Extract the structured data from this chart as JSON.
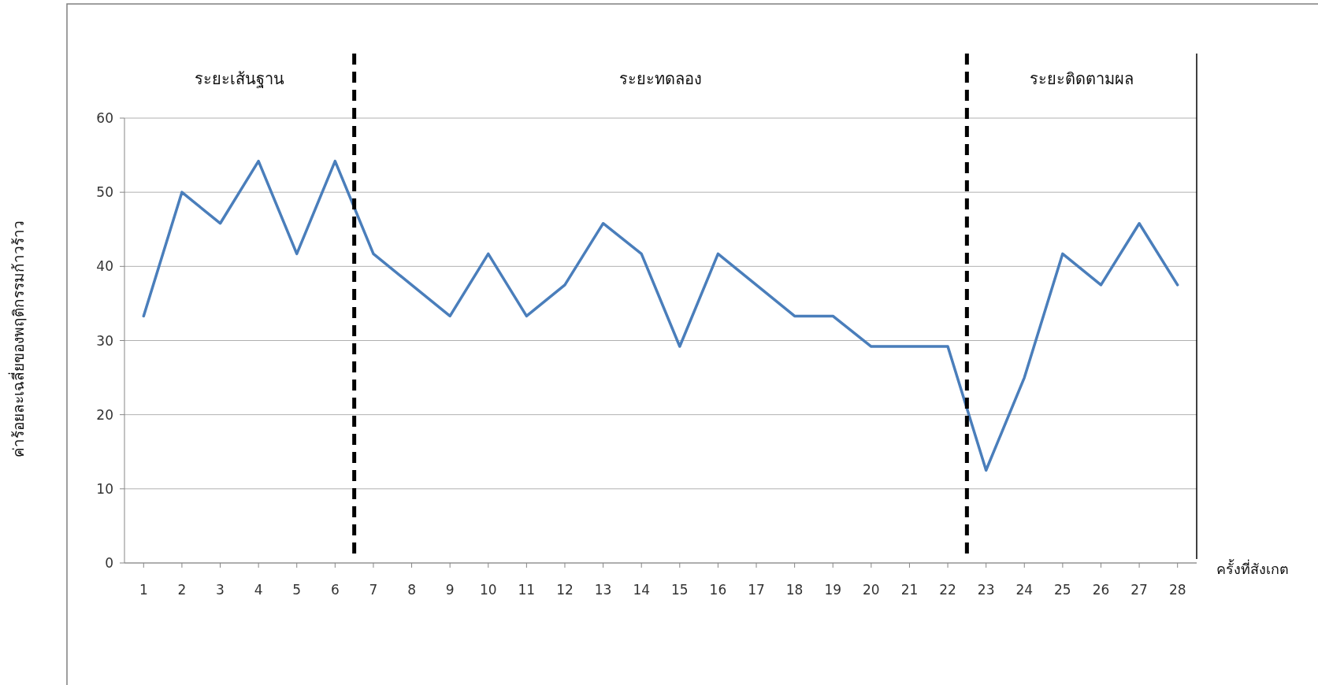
{
  "chart_data": {
    "type": "line",
    "xlabel": "ครั้งที่สังเกต",
    "ylabel": "ค่าร้อยละเฉลี่ยของพฤติกรรมก้าวร้าว",
    "x": [
      1,
      2,
      3,
      4,
      5,
      6,
      7,
      8,
      9,
      10,
      11,
      12,
      13,
      14,
      15,
      16,
      17,
      18,
      19,
      20,
      21,
      22,
      23,
      24,
      25,
      26,
      27,
      28
    ],
    "series": [
      {
        "color": "#4a7ebb",
        "values": [
          33.3,
          50,
          45.8,
          54.2,
          41.7,
          54.2,
          41.7,
          37.5,
          33.3,
          41.7,
          33.3,
          37.5,
          45.8,
          41.7,
          29.2,
          41.7,
          37.5,
          33.3,
          33.3,
          29.2,
          29.2,
          29.2,
          12.5,
          25,
          41.7,
          37.5,
          45.8,
          37.5
        ]
      }
    ],
    "xlim": [
      0.5,
      28.5
    ],
    "xticks": [
      1,
      2,
      3,
      4,
      5,
      6,
      7,
      8,
      9,
      10,
      11,
      12,
      13,
      14,
      15,
      16,
      17,
      18,
      19,
      20,
      21,
      22,
      23,
      24,
      25,
      26,
      27,
      28
    ],
    "ylim": [
      0,
      60
    ],
    "yticks": [
      0,
      10,
      20,
      30,
      40,
      50,
      60
    ],
    "grid": "y",
    "marker": "none",
    "line_style": "solid",
    "ref_lines": [
      {
        "axis": "x",
        "value": 6.5,
        "color": "#000000",
        "line_style": "dashed"
      },
      {
        "axis": "x",
        "value": 22.5,
        "color": "#000000",
        "line_style": "dashed"
      },
      {
        "axis": "x",
        "value": 28.5,
        "color": "#000000",
        "line_style": "solid"
      }
    ],
    "annotations": [
      "ระยะเส้นฐาน",
      "ระยะทดลอง",
      "ระยะติดตามผล"
    ]
  }
}
